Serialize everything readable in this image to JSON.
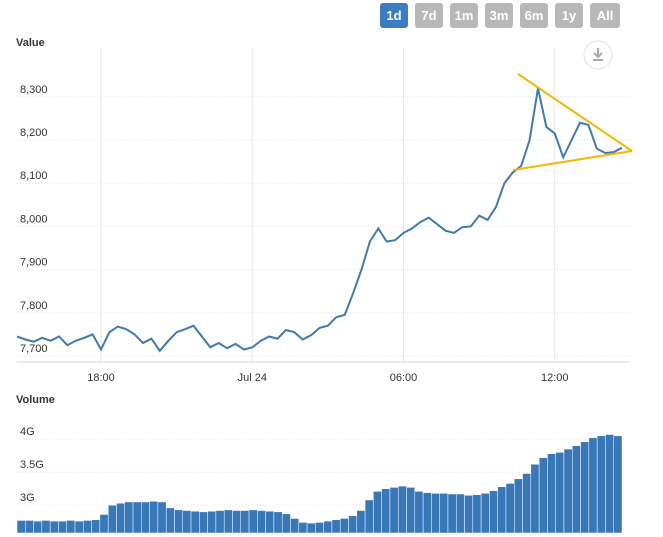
{
  "range_buttons": [
    {
      "label": "1d",
      "active": true
    },
    {
      "label": "7d",
      "active": false
    },
    {
      "label": "1m",
      "active": false
    },
    {
      "label": "3m",
      "active": false
    },
    {
      "label": "6m",
      "active": false
    },
    {
      "label": "1y",
      "active": false
    },
    {
      "label": "All",
      "active": false
    }
  ],
  "chart_data": [
    {
      "type": "line",
      "y_title": "Value",
      "color": "#3d7ab8",
      "grid": true,
      "categories": [
        null,
        null,
        null,
        null,
        null,
        null,
        null,
        null,
        null,
        null,
        "18:00",
        null,
        null,
        null,
        null,
        null,
        null,
        null,
        null,
        null,
        null,
        null,
        null,
        null,
        null,
        null,
        null,
        null,
        "Jul 24",
        null,
        null,
        null,
        null,
        null,
        null,
        null,
        null,
        null,
        null,
        null,
        null,
        null,
        null,
        null,
        null,
        null,
        "06:00",
        null,
        null,
        null,
        null,
        null,
        null,
        null,
        null,
        null,
        null,
        null,
        null,
        null,
        null,
        null,
        null,
        null,
        "12:00",
        null,
        null,
        null,
        null,
        null,
        null,
        null,
        null
      ],
      "values": [
        7745,
        7738,
        7733,
        7742,
        7735,
        7745,
        7725,
        7735,
        7742,
        7750,
        7715,
        7755,
        7768,
        7762,
        7750,
        7730,
        7740,
        7712,
        7735,
        7755,
        7762,
        7770,
        7745,
        7720,
        7730,
        7718,
        7728,
        7715,
        7720,
        7735,
        7745,
        7740,
        7760,
        7755,
        7738,
        7748,
        7765,
        7770,
        7790,
        7795,
        7845,
        7900,
        7965,
        7995,
        7965,
        7968,
        7985,
        7995,
        8010,
        8020,
        8005,
        7990,
        7985,
        7998,
        8000,
        8025,
        8015,
        8045,
        8100,
        8125,
        8140,
        8200,
        8320,
        8230,
        8215,
        8160,
        8200,
        8240,
        8235,
        8180,
        8170,
        8172,
        8182
      ],
      "ylim": [
        7686,
        8413
      ],
      "yticks": [
        {
          "value": 7700,
          "label": "7,700"
        },
        {
          "value": 7800,
          "label": "7,800"
        },
        {
          "value": 7900,
          "label": "7,900"
        },
        {
          "value": 8000,
          "label": "8,000"
        },
        {
          "value": 8100,
          "label": "8,100"
        },
        {
          "value": 8200,
          "label": "8,200"
        },
        {
          "value": 8300,
          "label": "8,300"
        }
      ]
    },
    {
      "type": "bar",
      "y_title": "Volume",
      "color": "#3877b8",
      "values": [
        2.77,
        2.77,
        2.76,
        2.77,
        2.76,
        2.76,
        2.77,
        2.76,
        2.77,
        2.78,
        2.86,
        3.0,
        3.03,
        3.05,
        3.05,
        3.05,
        3.06,
        3.05,
        2.96,
        2.93,
        2.92,
        2.91,
        2.9,
        2.91,
        2.92,
        2.93,
        2.92,
        2.92,
        2.93,
        2.92,
        2.91,
        2.9,
        2.87,
        2.8,
        2.74,
        2.73,
        2.74,
        2.76,
        2.78,
        2.8,
        2.84,
        2.92,
        3.08,
        3.21,
        3.25,
        3.27,
        3.29,
        3.27,
        3.21,
        3.19,
        3.18,
        3.18,
        3.17,
        3.17,
        3.15,
        3.16,
        3.18,
        3.22,
        3.28,
        3.33,
        3.4,
        3.48,
        3.62,
        3.72,
        3.78,
        3.8,
        3.85,
        3.9,
        3.96,
        4.02,
        4.05,
        4.07,
        4.05
      ],
      "ylim": [
        2.58,
        4.32
      ],
      "yticks": [
        {
          "value": 3,
          "label": "3G"
        },
        {
          "value": 3.5,
          "label": "3.5G"
        },
        {
          "value": 4,
          "label": "4G"
        }
      ]
    }
  ]
}
